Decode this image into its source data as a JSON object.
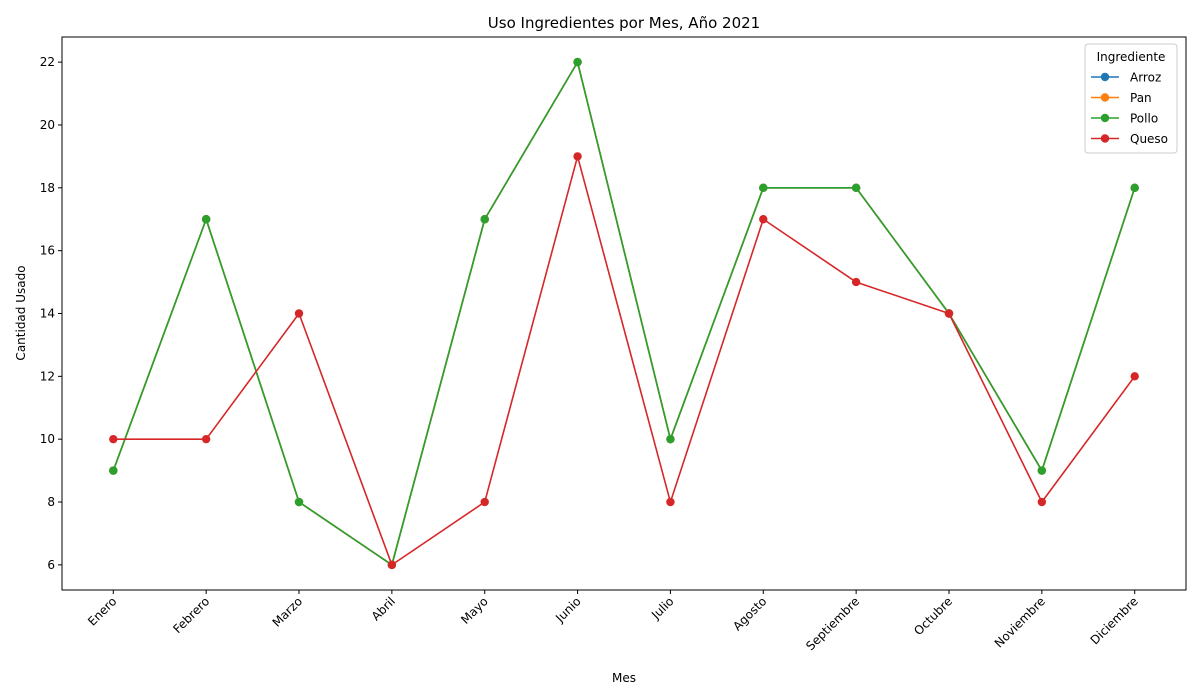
{
  "chart_data": {
    "type": "line",
    "title": "Uso Ingredientes por Mes, Año 2021",
    "xlabel": "Mes",
    "ylabel": "Cantidad Usado",
    "categories": [
      "Enero",
      "Febrero",
      "Marzo",
      "Abril",
      "Mayo",
      "Junio",
      "Julio",
      "Agosto",
      "Septiembre",
      "Octubre",
      "Noviembre",
      "Diciembre"
    ],
    "ylim": [
      5.2,
      22.8
    ],
    "yticks": [
      6,
      8,
      10,
      12,
      14,
      16,
      18,
      20,
      22
    ],
    "grid": false,
    "legend": {
      "title": "Ingrediente",
      "placement": "top-right"
    },
    "series": [
      {
        "name": "Arroz",
        "color": "#1f77b4",
        "values": [
          9,
          17,
          8,
          6,
          17,
          22,
          10,
          18,
          18,
          14,
          9,
          18
        ]
      },
      {
        "name": "Pan",
        "color": "#ff7f0e",
        "values": [
          9,
          17,
          8,
          6,
          17,
          22,
          10,
          18,
          18,
          14,
          9,
          18
        ]
      },
      {
        "name": "Pollo",
        "color": "#2ca02c",
        "values": [
          9,
          17,
          8,
          6,
          17,
          22,
          10,
          18,
          18,
          14,
          9,
          18
        ]
      },
      {
        "name": "Queso",
        "color": "#d62728",
        "values": [
          10,
          10,
          14,
          6,
          8,
          19,
          8,
          17,
          15,
          14,
          8,
          12
        ]
      }
    ]
  }
}
